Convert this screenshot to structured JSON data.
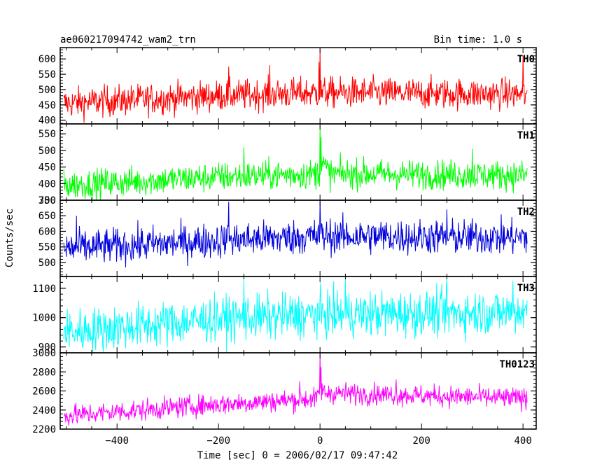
{
  "chart_data": {
    "type": "line",
    "title": "ae060217094742_wam2_trn",
    "bin_label": "Bin time: 1.0 s",
    "ylabel": "Counts/sec",
    "xlabel": "Time [sec] 0 = 2006/02/17 09:47:42",
    "xlim": [
      -512,
      426
    ],
    "data_x_range": [
      -505,
      408
    ],
    "x_ticks": [
      -400,
      -200,
      0,
      200,
      400
    ],
    "x_tick_labels": [
      "−400",
      "−200",
      "0",
      "200",
      "400"
    ],
    "panels": [
      {
        "name": "TH0",
        "color": "#ff0000",
        "ylim": [
          388,
          637
        ],
        "y_ticks": [
          400,
          450,
          500,
          550,
          600
        ],
        "y_tick_labels": [
          "400",
          "450",
          "500",
          "550",
          "600"
        ],
        "baseline": [
          [
            -505,
            455
          ],
          [
            -200,
            480
          ],
          [
            0,
            490
          ],
          [
            408,
            485
          ]
        ],
        "noise": 25,
        "spikes": [
          [
            0,
            635
          ],
          [
            -2,
            590
          ],
          [
            400,
            610
          ],
          [
            -99,
            580
          ],
          [
            -180,
            575
          ]
        ]
      },
      {
        "name": "TH1",
        "color": "#00ff00",
        "ylim": [
          350,
          580
        ],
        "y_ticks": [
          350,
          400,
          450,
          500,
          550
        ],
        "y_tick_labels": [
          "350",
          "400",
          "450",
          "500",
          "550"
        ],
        "baseline": [
          [
            -505,
            395
          ],
          [
            -200,
            420
          ],
          [
            0,
            430
          ],
          [
            5,
            460
          ],
          [
            20,
            430
          ],
          [
            408,
            425
          ]
        ],
        "noise": 22,
        "spikes": [
          [
            0,
            578
          ],
          [
            2,
            540
          ],
          [
            -150,
            510
          ],
          [
            300,
            505
          ]
        ]
      },
      {
        "name": "TH2",
        "color": "#0000dd",
        "ylim": [
          455,
          700
        ],
        "y_ticks": [
          500,
          550,
          600,
          650,
          700
        ],
        "y_tick_labels": [
          "500",
          "550",
          "600",
          "650",
          "700"
        ],
        "baseline": [
          [
            -505,
            545
          ],
          [
            -200,
            570
          ],
          [
            0,
            585
          ],
          [
            408,
            580
          ]
        ],
        "noise": 28,
        "spikes": [
          [
            0,
            700
          ],
          [
            -180,
            695
          ],
          [
            -480,
            650
          ],
          [
            250,
            670
          ]
        ]
      },
      {
        "name": "TH3",
        "color": "#00ffff",
        "ylim": [
          880,
          1140
        ],
        "y_ticks": [
          900,
          1000,
          1100
        ],
        "y_tick_labels": [
          "900",
          "1000",
          "1100"
        ],
        "baseline": [
          [
            -505,
            950
          ],
          [
            -200,
            995
          ],
          [
            0,
            1010
          ],
          [
            408,
            1020
          ]
        ],
        "noise": 38,
        "spikes": [
          [
            -150,
            1130
          ],
          [
            50,
            1135
          ],
          [
            250,
            1130
          ],
          [
            380,
            1125
          ]
        ]
      },
      {
        "name": "TH0123",
        "color": "#ff00ff",
        "ylim": [
          2200,
          3000
        ],
        "y_ticks": [
          2200,
          2400,
          2600,
          2800,
          3000
        ],
        "y_tick_labels": [
          "2200",
          "2400",
          "2600",
          "2800",
          "3000"
        ],
        "baseline": [
          [
            -505,
            2340
          ],
          [
            -200,
            2460
          ],
          [
            -5,
            2520
          ],
          [
            0,
            2620
          ],
          [
            10,
            2580
          ],
          [
            408,
            2520
          ]
        ],
        "noise": 55,
        "spikes": [
          [
            0,
            2990
          ],
          [
            2,
            2850
          ],
          [
            -40,
            2700
          ],
          [
            150,
            2720
          ]
        ]
      }
    ]
  }
}
